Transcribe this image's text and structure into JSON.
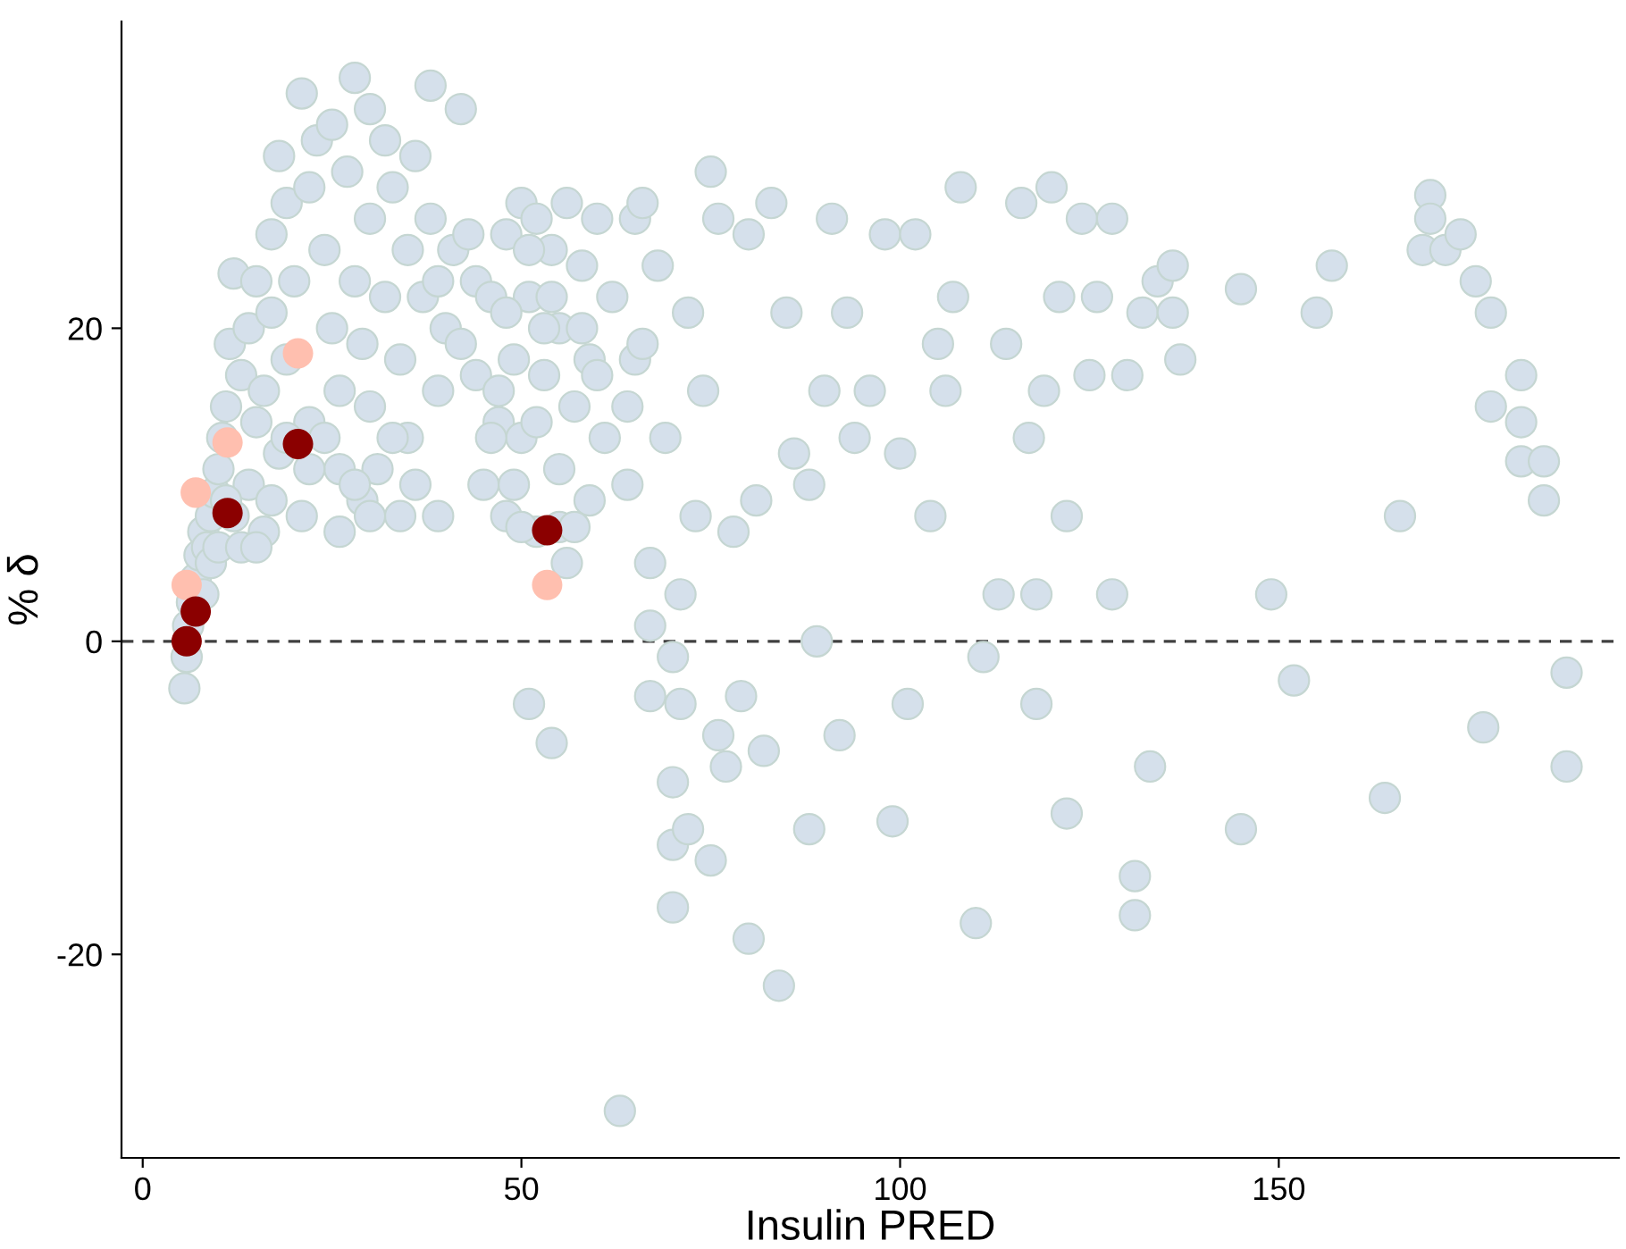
{
  "chart_data": {
    "type": "scatter",
    "xlabel": "Insulin PRED",
    "ylabel": "% δ",
    "xlim": [
      -2.8,
      194.9
    ],
    "ylim": [
      -33,
      39.6
    ],
    "xticks": [
      0,
      50,
      100,
      150
    ],
    "yticks": [
      -20,
      0,
      20
    ],
    "grid": false,
    "legend": false,
    "marker": "circle",
    "ref_lines": [
      {
        "axis": "y",
        "value": 0,
        "color": "#404040",
        "line_style": "dashed"
      }
    ],
    "series": [
      {
        "color": "#d5e0eb",
        "x": [
          5.5,
          5.8,
          6,
          6.5,
          7,
          7.5,
          8,
          8.5,
          9,
          9.5,
          10,
          10.5,
          11,
          11.5,
          12,
          13,
          14,
          14,
          15,
          15,
          16,
          16,
          17,
          17,
          18,
          18,
          19,
          19,
          20,
          21,
          21,
          22,
          22,
          23,
          24,
          25,
          25,
          26,
          26,
          27,
          28,
          28,
          29,
          29,
          30,
          30,
          30,
          31,
          32,
          32,
          33,
          34,
          34,
          35,
          35,
          36,
          37,
          38,
          38,
          39,
          39,
          40,
          41,
          42,
          42,
          43,
          44,
          45,
          46,
          47,
          48,
          48,
          49,
          50,
          50,
          51,
          51,
          52,
          52,
          53,
          54,
          54,
          55,
          55,
          56,
          56,
          57,
          58,
          59,
          59,
          60,
          61,
          62,
          63,
          64,
          65,
          65,
          66,
          67,
          67,
          67,
          68,
          69,
          70,
          70,
          70,
          70,
          71,
          71,
          72,
          72,
          73,
          74,
          75,
          75,
          76,
          76,
          77,
          78,
          79,
          80,
          80,
          81,
          82,
          83,
          84,
          85,
          86,
          88,
          88,
          89,
          90,
          91,
          92,
          93,
          94,
          96,
          98,
          99,
          100,
          101,
          102,
          104,
          105,
          106,
          107,
          108,
          110,
          111,
          113,
          114,
          116,
          117,
          118,
          118,
          119,
          120,
          121,
          122,
          122,
          124,
          125,
          126,
          128,
          128,
          130,
          131,
          131,
          132,
          133,
          134,
          136,
          136,
          137,
          145,
          145,
          149,
          152,
          155,
          157,
          164,
          166,
          169,
          170,
          170,
          172,
          174,
          176,
          177,
          178,
          178,
          182,
          182,
          182,
          185,
          185,
          188,
          188,
          8,
          9,
          10,
          12,
          13,
          11,
          15,
          17,
          19,
          22,
          24,
          26,
          28,
          30,
          33,
          36,
          39,
          44,
          46,
          49,
          52,
          53,
          55,
          57,
          50,
          47,
          48,
          51,
          54,
          58,
          60,
          66,
          64
        ],
        "values": [
          -3,
          -1,
          1,
          2.5,
          4,
          5.5,
          7,
          6,
          8,
          9.5,
          11,
          13,
          15,
          19,
          23.5,
          17,
          10,
          20,
          14,
          23,
          7,
          16,
          26,
          21,
          31,
          12,
          28,
          18,
          23,
          35,
          8,
          29,
          14,
          32,
          25,
          20,
          33,
          16,
          11,
          30,
          36,
          23,
          19,
          9,
          34,
          27,
          15,
          11,
          32,
          22,
          29,
          8,
          18,
          13,
          25,
          31,
          22,
          35.5,
          27,
          8,
          16,
          20,
          25,
          34,
          19,
          26,
          23,
          10,
          22,
          14,
          26,
          8,
          18,
          28,
          13,
          -4,
          22,
          27,
          7,
          17,
          -6.5,
          25,
          11,
          20,
          28,
          5,
          15,
          24,
          9,
          18,
          27,
          13,
          22,
          -30,
          10,
          27,
          18,
          28,
          -3.5,
          1,
          5,
          24,
          13,
          -1,
          -9,
          -13,
          -17,
          -4,
          3,
          21,
          -12,
          8,
          16,
          -14,
          30,
          27,
          -6,
          -8,
          7,
          -3.5,
          -19,
          26,
          9,
          -7,
          28,
          -22,
          21,
          12,
          -12,
          10,
          0,
          16,
          27,
          -6,
          21,
          13,
          16,
          26,
          -11.5,
          12,
          -4,
          26,
          8,
          19,
          16,
          22,
          29,
          -18,
          -1,
          3,
          19,
          28,
          13,
          3,
          -4,
          16,
          29,
          22,
          8,
          -11,
          27,
          17,
          22,
          3,
          27,
          17,
          -15,
          -17.5,
          21,
          -8,
          23,
          21,
          24,
          18,
          22.5,
          -12,
          3,
          -2.5,
          21,
          24,
          -10,
          8,
          25,
          28.5,
          27,
          25,
          26,
          23,
          -5.5,
          21,
          15,
          17,
          14,
          11.5,
          11.5,
          9,
          -2,
          -8,
          3,
          5,
          6,
          8,
          6,
          9,
          6,
          9,
          13,
          11,
          13,
          7,
          10,
          8,
          13,
          10,
          23,
          17,
          13,
          10,
          14,
          20,
          7.3,
          7.3,
          7.3,
          16,
          21,
          25,
          22,
          20,
          17,
          19,
          15
        ]
      },
      {
        "color": "#ffbfaf",
        "x": [
          5.8,
          7,
          11.2,
          20.5,
          53.4
        ],
        "values": [
          3.6,
          9.5,
          12.7,
          18.4,
          3.6
        ]
      },
      {
        "color": "#8b0000",
        "x": [
          5.8,
          7,
          11.2,
          20.5,
          53.4
        ],
        "values": [
          0,
          1.9,
          8.2,
          12.6,
          7.1
        ]
      }
    ]
  }
}
